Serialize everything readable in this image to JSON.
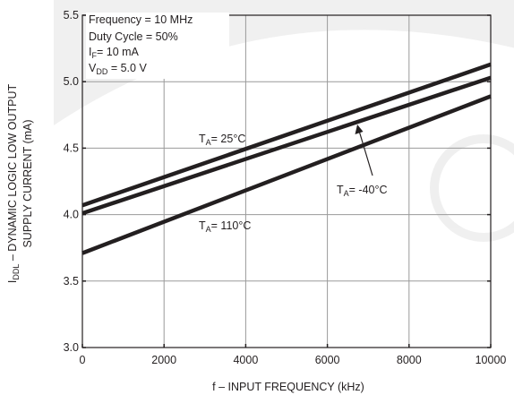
{
  "chart_data": {
    "type": "line",
    "title": "",
    "xlabel": "f – INPUT FREQUENCY (kHz)",
    "ylabel_line1": "I_DDL – DYNAMIC LOGIC LOW OUTPUT",
    "ylabel_line2": "SUPPLY CURRENT (mA)",
    "xlim": [
      0,
      10000
    ],
    "ylim": [
      3.0,
      5.5
    ],
    "x_ticks": [
      0,
      2000,
      4000,
      6000,
      8000,
      10000
    ],
    "y_ticks": [
      3.0,
      3.5,
      4.0,
      4.5,
      5.0,
      5.5
    ],
    "x_tick_labels": [
      "0",
      "2000",
      "4000",
      "6000",
      "8000",
      "10000"
    ],
    "y_tick_labels": [
      "3.0",
      "3.5",
      "4.0",
      "4.5",
      "5.0",
      "5.5"
    ],
    "grid": true,
    "conditions": [
      "Frequency = 10 MHz",
      "Duty Cycle = 50%",
      "I_F = 10 mA",
      "V_DD = 5.0 V"
    ],
    "series": [
      {
        "name": "T_A = 25°C",
        "x": [
          0,
          10000
        ],
        "y": [
          4.07,
          5.13
        ]
      },
      {
        "name": "T_A = -40°C",
        "x": [
          0,
          10000
        ],
        "y": [
          4.01,
          5.03
        ]
      },
      {
        "name": "T_A = 110°C",
        "x": [
          0,
          10000
        ],
        "y": [
          3.71,
          4.89
        ]
      }
    ],
    "labels": [
      {
        "series": 0,
        "text_main": "T",
        "text_sub": "A",
        "text_tail": "= 25°C"
      },
      {
        "series": 1,
        "text_main": "T",
        "text_sub": "A",
        "text_tail": "= -40°C"
      },
      {
        "series": 2,
        "text_main": "T",
        "text_sub": "A",
        "text_tail": "= 110°C"
      }
    ],
    "line_color": "#231f20",
    "grid_color": "#9a9a9a"
  }
}
